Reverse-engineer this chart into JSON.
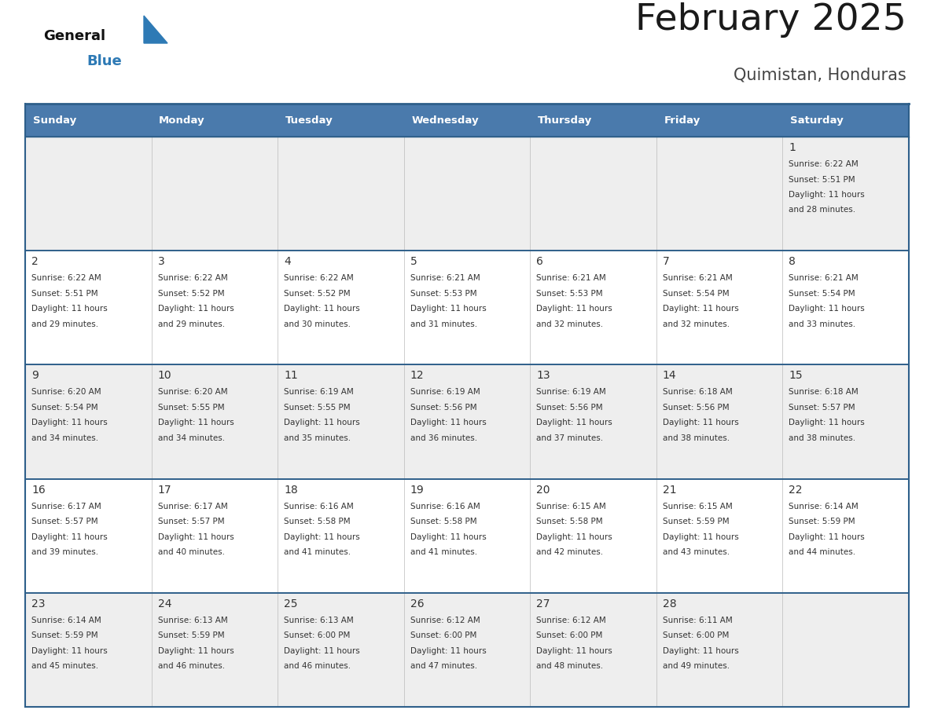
{
  "title": "February 2025",
  "subtitle": "Quimistan, Honduras",
  "header_bg": "#4a7aac",
  "header_text_color": "#ffffff",
  "day_names": [
    "Sunday",
    "Monday",
    "Tuesday",
    "Wednesday",
    "Thursday",
    "Friday",
    "Saturday"
  ],
  "row_bg_colors": [
    "#eeeeee",
    "#ffffff",
    "#eeeeee",
    "#ffffff",
    "#eeeeee"
  ],
  "cell_border_color": "#2e5f8a",
  "day_num_color": "#333333",
  "info_text_color": "#333333",
  "calendar_data": [
    [
      {
        "day": "",
        "sunrise": "",
        "sunset": "",
        "daylight_line1": "",
        "daylight_line2": ""
      },
      {
        "day": "",
        "sunrise": "",
        "sunset": "",
        "daylight_line1": "",
        "daylight_line2": ""
      },
      {
        "day": "",
        "sunrise": "",
        "sunset": "",
        "daylight_line1": "",
        "daylight_line2": ""
      },
      {
        "day": "",
        "sunrise": "",
        "sunset": "",
        "daylight_line1": "",
        "daylight_line2": ""
      },
      {
        "day": "",
        "sunrise": "",
        "sunset": "",
        "daylight_line1": "",
        "daylight_line2": ""
      },
      {
        "day": "",
        "sunrise": "",
        "sunset": "",
        "daylight_line1": "",
        "daylight_line2": ""
      },
      {
        "day": "1",
        "sunrise": "6:22 AM",
        "sunset": "5:51 PM",
        "daylight_line1": "11 hours",
        "daylight_line2": "and 28 minutes."
      }
    ],
    [
      {
        "day": "2",
        "sunrise": "6:22 AM",
        "sunset": "5:51 PM",
        "daylight_line1": "11 hours",
        "daylight_line2": "and 29 minutes."
      },
      {
        "day": "3",
        "sunrise": "6:22 AM",
        "sunset": "5:52 PM",
        "daylight_line1": "11 hours",
        "daylight_line2": "and 29 minutes."
      },
      {
        "day": "4",
        "sunrise": "6:22 AM",
        "sunset": "5:52 PM",
        "daylight_line1": "11 hours",
        "daylight_line2": "and 30 minutes."
      },
      {
        "day": "5",
        "sunrise": "6:21 AM",
        "sunset": "5:53 PM",
        "daylight_line1": "11 hours",
        "daylight_line2": "and 31 minutes."
      },
      {
        "day": "6",
        "sunrise": "6:21 AM",
        "sunset": "5:53 PM",
        "daylight_line1": "11 hours",
        "daylight_line2": "and 32 minutes."
      },
      {
        "day": "7",
        "sunrise": "6:21 AM",
        "sunset": "5:54 PM",
        "daylight_line1": "11 hours",
        "daylight_line2": "and 32 minutes."
      },
      {
        "day": "8",
        "sunrise": "6:21 AM",
        "sunset": "5:54 PM",
        "daylight_line1": "11 hours",
        "daylight_line2": "and 33 minutes."
      }
    ],
    [
      {
        "day": "9",
        "sunrise": "6:20 AM",
        "sunset": "5:54 PM",
        "daylight_line1": "11 hours",
        "daylight_line2": "and 34 minutes."
      },
      {
        "day": "10",
        "sunrise": "6:20 AM",
        "sunset": "5:55 PM",
        "daylight_line1": "11 hours",
        "daylight_line2": "and 34 minutes."
      },
      {
        "day": "11",
        "sunrise": "6:19 AM",
        "sunset": "5:55 PM",
        "daylight_line1": "11 hours",
        "daylight_line2": "and 35 minutes."
      },
      {
        "day": "12",
        "sunrise": "6:19 AM",
        "sunset": "5:56 PM",
        "daylight_line1": "11 hours",
        "daylight_line2": "and 36 minutes."
      },
      {
        "day": "13",
        "sunrise": "6:19 AM",
        "sunset": "5:56 PM",
        "daylight_line1": "11 hours",
        "daylight_line2": "and 37 minutes."
      },
      {
        "day": "14",
        "sunrise": "6:18 AM",
        "sunset": "5:56 PM",
        "daylight_line1": "11 hours",
        "daylight_line2": "and 38 minutes."
      },
      {
        "day": "15",
        "sunrise": "6:18 AM",
        "sunset": "5:57 PM",
        "daylight_line1": "11 hours",
        "daylight_line2": "and 38 minutes."
      }
    ],
    [
      {
        "day": "16",
        "sunrise": "6:17 AM",
        "sunset": "5:57 PM",
        "daylight_line1": "11 hours",
        "daylight_line2": "and 39 minutes."
      },
      {
        "day": "17",
        "sunrise": "6:17 AM",
        "sunset": "5:57 PM",
        "daylight_line1": "11 hours",
        "daylight_line2": "and 40 minutes."
      },
      {
        "day": "18",
        "sunrise": "6:16 AM",
        "sunset": "5:58 PM",
        "daylight_line1": "11 hours",
        "daylight_line2": "and 41 minutes."
      },
      {
        "day": "19",
        "sunrise": "6:16 AM",
        "sunset": "5:58 PM",
        "daylight_line1": "11 hours",
        "daylight_line2": "and 41 minutes."
      },
      {
        "day": "20",
        "sunrise": "6:15 AM",
        "sunset": "5:58 PM",
        "daylight_line1": "11 hours",
        "daylight_line2": "and 42 minutes."
      },
      {
        "day": "21",
        "sunrise": "6:15 AM",
        "sunset": "5:59 PM",
        "daylight_line1": "11 hours",
        "daylight_line2": "and 43 minutes."
      },
      {
        "day": "22",
        "sunrise": "6:14 AM",
        "sunset": "5:59 PM",
        "daylight_line1": "11 hours",
        "daylight_line2": "and 44 minutes."
      }
    ],
    [
      {
        "day": "23",
        "sunrise": "6:14 AM",
        "sunset": "5:59 PM",
        "daylight_line1": "11 hours",
        "daylight_line2": "and 45 minutes."
      },
      {
        "day": "24",
        "sunrise": "6:13 AM",
        "sunset": "5:59 PM",
        "daylight_line1": "11 hours",
        "daylight_line2": "and 46 minutes."
      },
      {
        "day": "25",
        "sunrise": "6:13 AM",
        "sunset": "6:00 PM",
        "daylight_line1": "11 hours",
        "daylight_line2": "and 46 minutes."
      },
      {
        "day": "26",
        "sunrise": "6:12 AM",
        "sunset": "6:00 PM",
        "daylight_line1": "11 hours",
        "daylight_line2": "and 47 minutes."
      },
      {
        "day": "27",
        "sunrise": "6:12 AM",
        "sunset": "6:00 PM",
        "daylight_line1": "11 hours",
        "daylight_line2": "and 48 minutes."
      },
      {
        "day": "28",
        "sunrise": "6:11 AM",
        "sunset": "6:00 PM",
        "daylight_line1": "11 hours",
        "daylight_line2": "and 49 minutes."
      },
      {
        "day": "",
        "sunrise": "",
        "sunset": "",
        "daylight_line1": "",
        "daylight_line2": ""
      }
    ]
  ],
  "logo_general_color": "#111111",
  "logo_blue_color": "#2e7ab5",
  "logo_triangle_color": "#2e7ab5"
}
